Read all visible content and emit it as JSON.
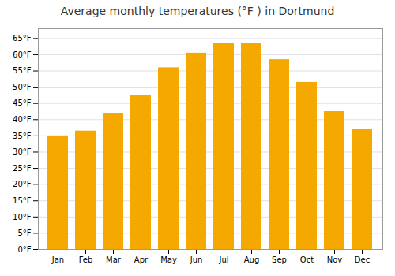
{
  "chart_data": {
    "type": "bar",
    "title": "Average monthly temperatures (°F ) in Dortmund",
    "categories": [
      "Jan",
      "Feb",
      "Mar",
      "Apr",
      "May",
      "Jun",
      "Jul",
      "Aug",
      "Sep",
      "Oct",
      "Nov",
      "Dec"
    ],
    "values": [
      35,
      36.5,
      42,
      47.5,
      56,
      60.5,
      63.5,
      63.5,
      58.5,
      51.5,
      42.5,
      37
    ],
    "color": "#F5A800",
    "ylim": [
      0,
      68
    ],
    "yticks": [
      {
        "value": 0,
        "label": "0°F"
      },
      {
        "value": 5,
        "label": "5°F"
      },
      {
        "value": 10,
        "label": "10°F"
      },
      {
        "value": 15,
        "label": "15°F"
      },
      {
        "value": 20,
        "label": "20°F"
      },
      {
        "value": 25,
        "label": "25°F"
      },
      {
        "value": 30,
        "label": "30°F"
      },
      {
        "value": 35,
        "label": "35°F"
      },
      {
        "value": 40,
        "label": "40°F"
      },
      {
        "value": 45,
        "label": "45°F"
      },
      {
        "value": 50,
        "label": "50°F"
      },
      {
        "value": 55,
        "label": "55°F"
      },
      {
        "value": 60,
        "label": "60°F"
      },
      {
        "value": 65,
        "label": "65°F"
      }
    ],
    "grid": true
  }
}
